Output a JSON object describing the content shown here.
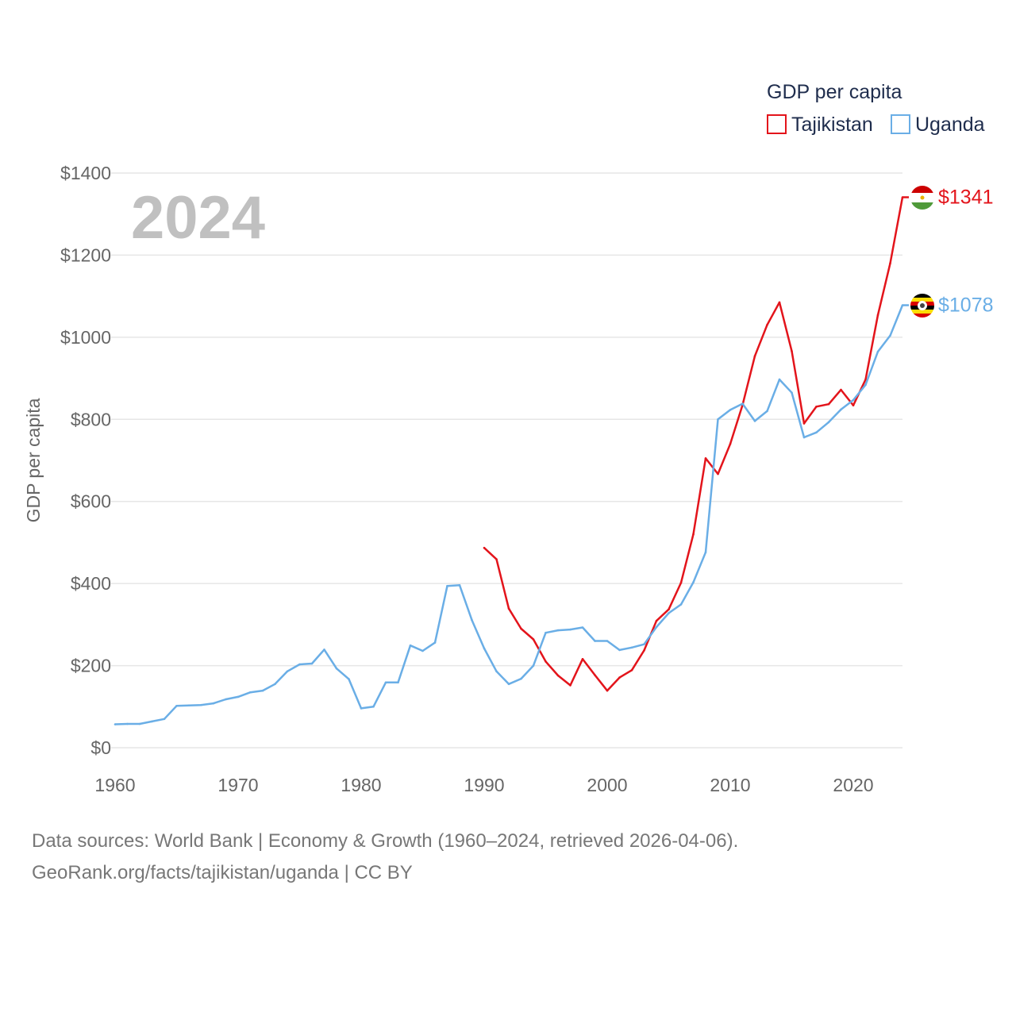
{
  "colors": {
    "tajikistan": "#e3141b",
    "uganda": "#6aaee6",
    "grid": "#e6e6e6",
    "tick": "#666666"
  },
  "year_label": "2024",
  "source": {
    "line1": "Data sources: World Bank | Economy & Growth (1960–2024, retrieved 2026-04-06).",
    "line2": "GeoRank.org/facts/tajikistan/uganda | CC BY"
  },
  "chart_data": {
    "type": "line",
    "title": "",
    "xlabel": "",
    "ylabel": "GDP per capita",
    "legend_title": "GDP per capita",
    "legend_position": "top-right",
    "xlim": [
      1960,
      2024
    ],
    "ylim": [
      0,
      1400
    ],
    "x_ticks": [
      1960,
      1970,
      1980,
      1990,
      2000,
      2010,
      2020
    ],
    "x_tick_labels": [
      "1960",
      "1970",
      "1980",
      "1990",
      "2000",
      "2010",
      "2020"
    ],
    "y_ticks": [
      0,
      200,
      400,
      600,
      800,
      1000,
      1200,
      1400
    ],
    "y_tick_labels": [
      "$0",
      "$200",
      "$400",
      "$600",
      "$800",
      "$1000",
      "$1200",
      "$1400"
    ],
    "grid": true,
    "series": [
      {
        "name": "Tajikistan",
        "color": "#e3141b",
        "end_label": "$1341",
        "flag_icon": "tajikistan-flag-icon",
        "x": [
          1990,
          1991,
          1992,
          1993,
          1994,
          1995,
          1996,
          1997,
          1998,
          1999,
          2000,
          2001,
          2002,
          2003,
          2004,
          2005,
          2006,
          2007,
          2008,
          2009,
          2010,
          2011,
          2012,
          2013,
          2014,
          2015,
          2016,
          2017,
          2018,
          2019,
          2020,
          2021,
          2022,
          2023,
          2024
        ],
        "values": [
          487,
          459,
          339,
          290,
          264,
          210,
          176,
          152,
          216,
          177,
          139,
          171,
          189,
          237,
          309,
          337,
          402,
          520,
          705,
          667,
          740,
          835,
          954,
          1030,
          1085,
          966,
          790,
          831,
          837,
          872,
          834,
          897,
          1054,
          1180,
          1341
        ]
      },
      {
        "name": "Uganda",
        "color": "#6aaee6",
        "end_label": "$1078",
        "flag_icon": "uganda-flag-icon",
        "x": [
          1960,
          1961,
          1962,
          1963,
          1964,
          1965,
          1966,
          1967,
          1968,
          1969,
          1970,
          1971,
          1972,
          1973,
          1974,
          1975,
          1976,
          1977,
          1978,
          1979,
          1980,
          1981,
          1982,
          1983,
          1984,
          1985,
          1986,
          1987,
          1988,
          1989,
          1990,
          1991,
          1992,
          1993,
          1994,
          1995,
          1996,
          1997,
          1998,
          1999,
          2000,
          2001,
          2002,
          2003,
          2004,
          2005,
          2006,
          2007,
          2008,
          2009,
          2010,
          2011,
          2012,
          2013,
          2014,
          2015,
          2016,
          2017,
          2018,
          2019,
          2020,
          2021,
          2022,
          2023,
          2024
        ],
        "values": [
          57,
          58,
          58,
          64,
          70,
          102,
          103,
          104,
          108,
          118,
          124,
          135,
          139,
          155,
          186,
          203,
          205,
          239,
          193,
          167,
          96,
          100,
          159,
          159,
          249,
          236,
          256,
          394,
          396,
          311,
          242,
          186,
          155,
          168,
          200,
          280,
          286,
          288,
          293,
          260,
          260,
          238,
          244,
          252,
          294,
          328,
          349,
          403,
          476,
          800,
          823,
          838,
          796,
          820,
          897,
          865,
          756,
          768,
          793,
          824,
          847,
          884,
          965,
          1004,
          1078
        ]
      }
    ]
  }
}
